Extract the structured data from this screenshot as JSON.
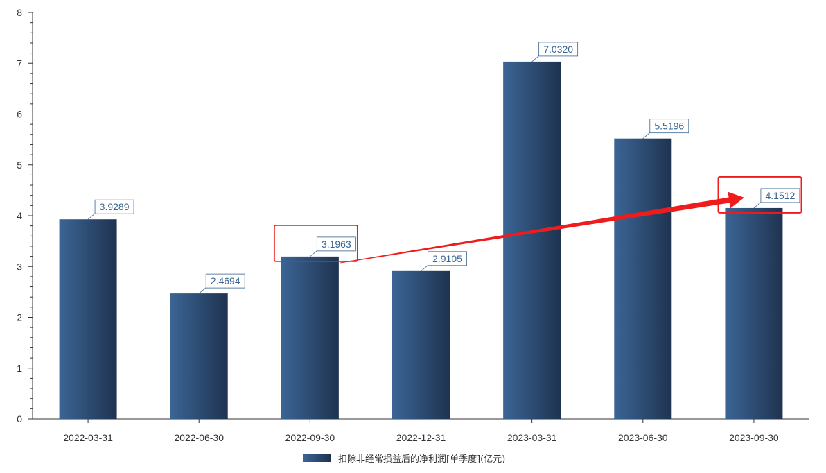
{
  "chart_data": {
    "type": "bar",
    "categories": [
      "2022-03-31",
      "2022-06-30",
      "2022-09-30",
      "2022-12-31",
      "2023-03-31",
      "2023-06-30",
      "2023-09-30"
    ],
    "series": [
      {
        "name": "扣除非经常损益后的净利润[单季度](亿元)",
        "values": [
          3.9289,
          2.4694,
          3.1963,
          2.9105,
          7.032,
          5.5196,
          4.1512
        ],
        "data_labels": [
          "3.9289",
          "2.4694",
          "3.1963",
          "2.9105",
          "7.0320",
          "5.5196",
          "4.1512"
        ]
      }
    ],
    "ylim": [
      0,
      8
    ],
    "yticks": [
      "0",
      "1",
      "2",
      "3",
      "4",
      "5",
      "6",
      "7",
      "8"
    ],
    "grid": false,
    "legend_position": "bottom-center",
    "highlighted_categories": [
      "2022-09-30",
      "2023-09-30"
    ],
    "annotation": "red arrow from 2022-09-30 to 2023-09-30"
  },
  "colors": {
    "bar_light": "#3b6595",
    "bar_dark": "#1f3350",
    "label_text": "#3a6390",
    "label_border": "#3a6390",
    "highlight": "#ee1c1c",
    "axis": "#333333"
  }
}
